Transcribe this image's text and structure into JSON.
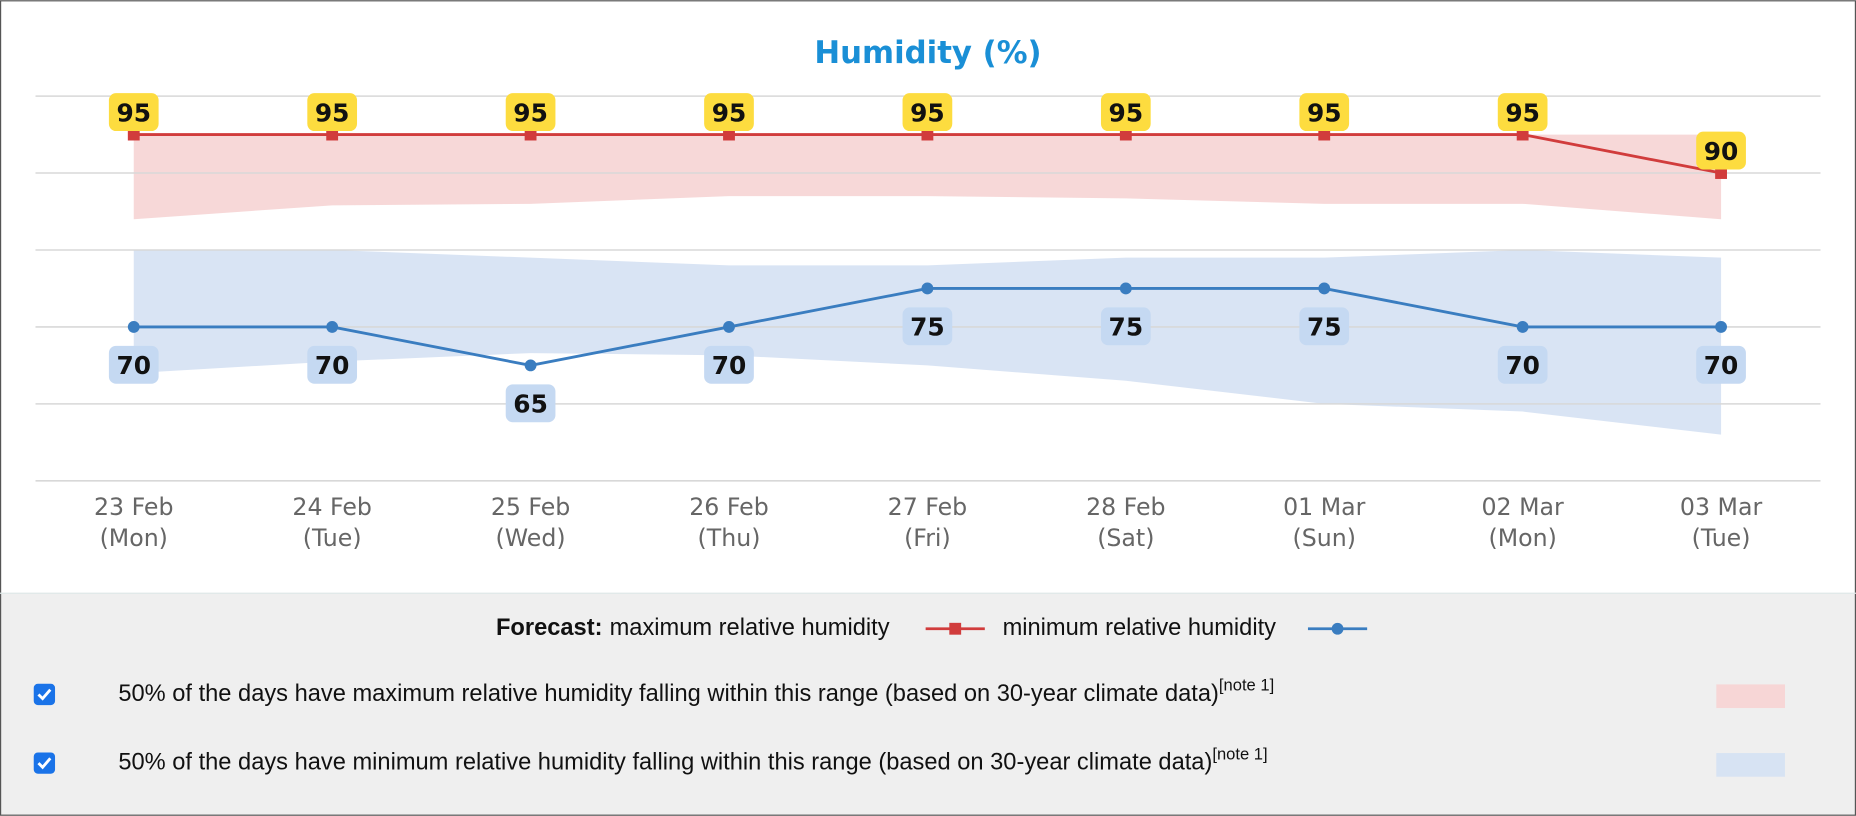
{
  "chart_data": {
    "type": "line",
    "title": "Humidity (%)",
    "categories": [
      "23 Feb\n(Mon)",
      "24 Feb\n(Tue)",
      "25 Feb\n(Wed)",
      "26 Feb\n(Thu)",
      "27 Feb\n(Fri)",
      "28 Feb\n(Sat)",
      "01 Mar\n(Sun)",
      "02 Mar\n(Mon)",
      "03 Mar\n(Tue)"
    ],
    "ylim": [
      50,
      100
    ],
    "yticks": [
      50,
      60,
      70,
      80,
      90,
      100
    ],
    "grid": true,
    "legend_title": "Forecast:",
    "series": [
      {
        "name": "maximum relative humidity",
        "color": "#d13c3c",
        "marker": "square",
        "label_color": "#fddc3f",
        "label_side": "above",
        "values": [
          95,
          95,
          95,
          95,
          95,
          95,
          95,
          95,
          90
        ]
      },
      {
        "name": "minimum relative humidity",
        "color": "#3a7dc0",
        "marker": "circle",
        "label_color": "#c5d9f2",
        "label_side": "below",
        "values": [
          70,
          70,
          65,
          70,
          75,
          75,
          75,
          70,
          70
        ]
      }
    ],
    "bands": [
      {
        "label": "50% of the days have maximum relative humidity falling within this range (based on 30-year climate data)",
        "note": "[note 1]",
        "color": "#f7d6d6",
        "checked": true,
        "high": [
          95,
          95,
          95,
          95,
          95,
          95,
          95,
          95,
          95
        ],
        "low": [
          84,
          85.8,
          86,
          87,
          87,
          86.7,
          86,
          86,
          84
        ]
      },
      {
        "label": "50% of the days have minimum relative humidity falling within this range (based on 30-year climate data)",
        "note": "[note 1]",
        "color": "#d7e3f3",
        "checked": true,
        "high": [
          80,
          80,
          79,
          78,
          78,
          79,
          79,
          80,
          79
        ],
        "low": [
          64,
          65.5,
          66.6,
          66.3,
          65,
          63,
          60,
          59,
          56
        ]
      }
    ]
  }
}
